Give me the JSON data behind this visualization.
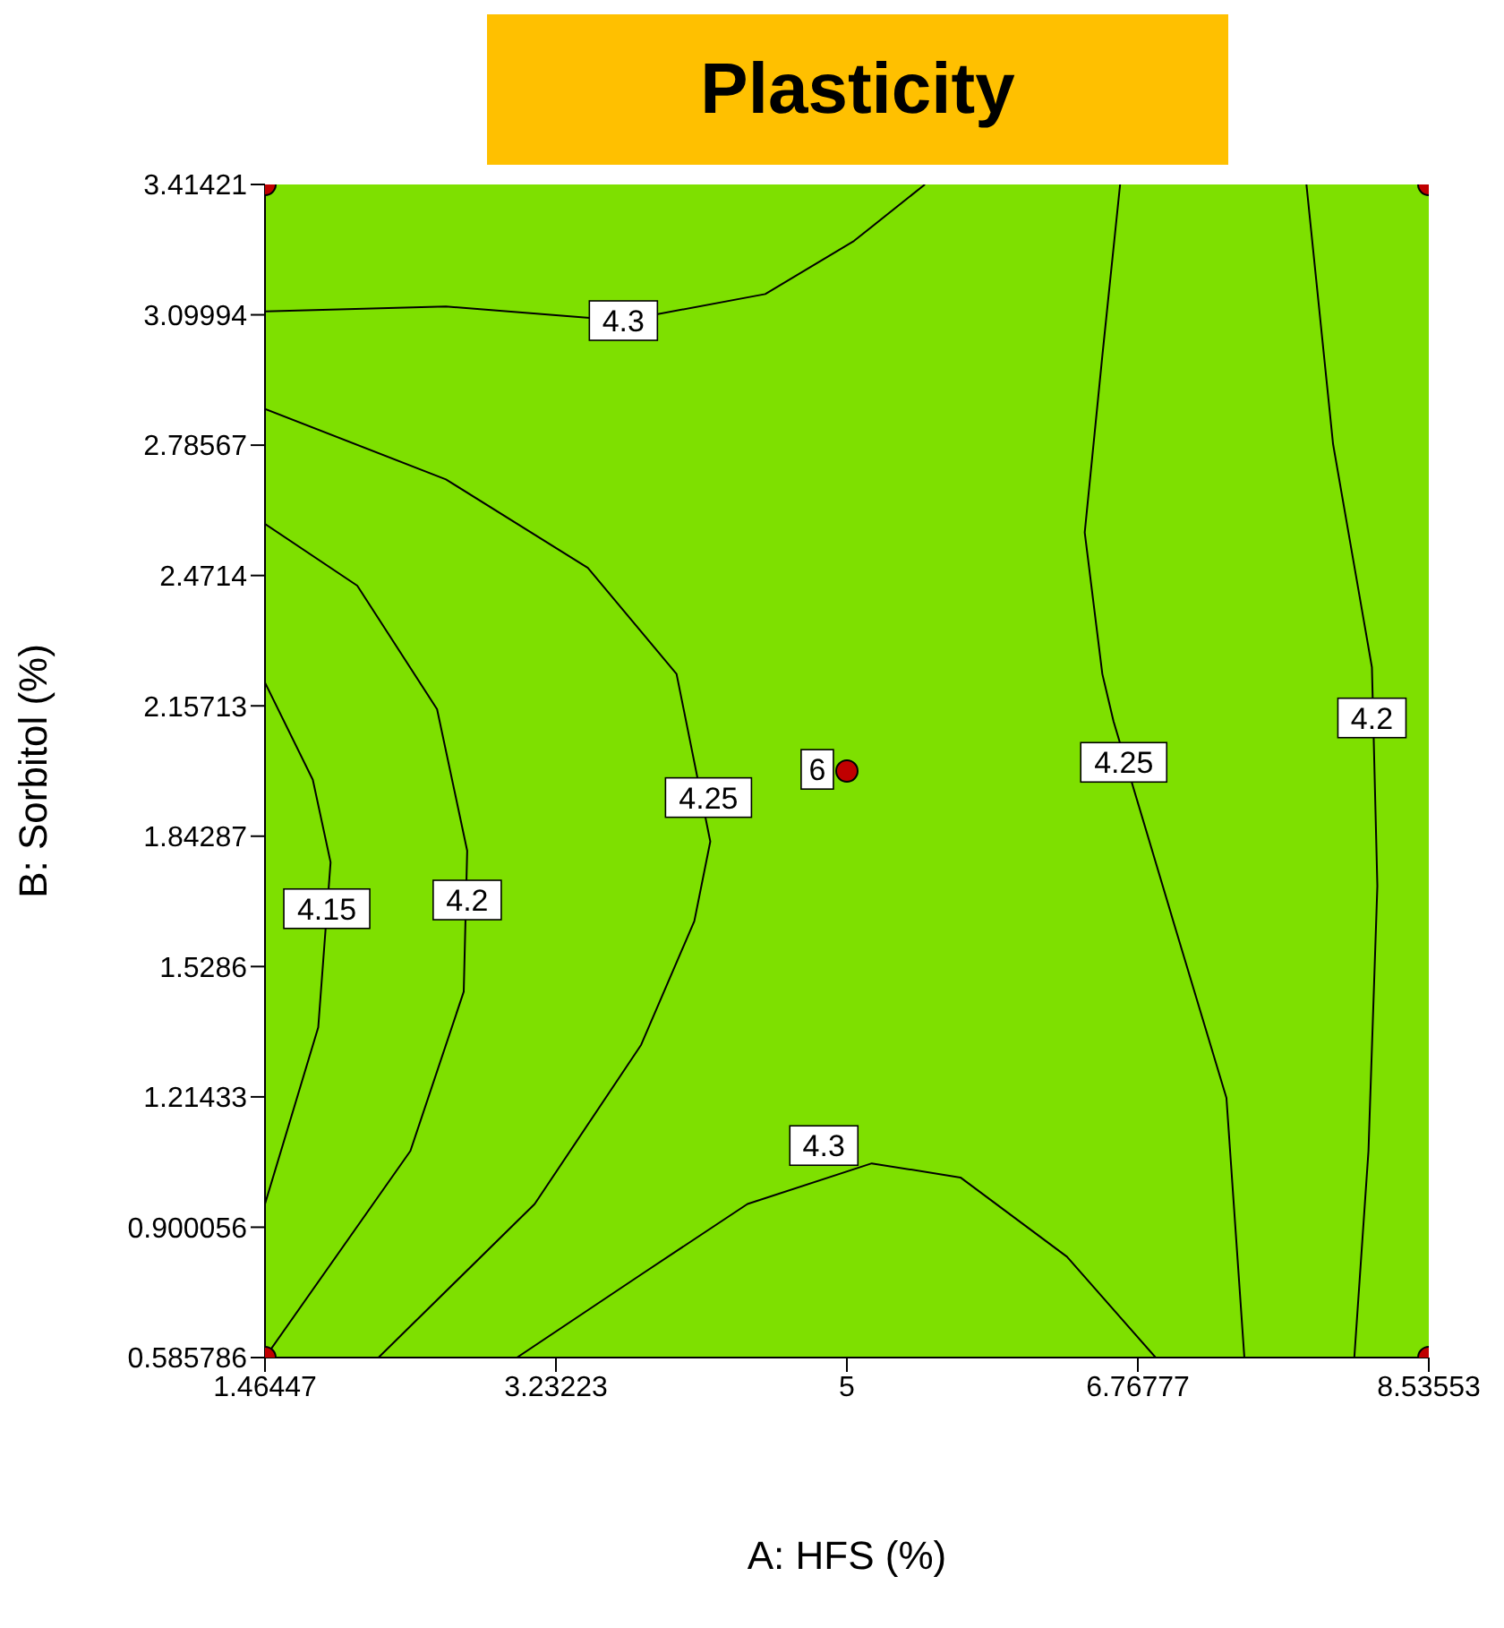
{
  "chart_data": {
    "type": "line",
    "title": "Plasticity",
    "xlabel": "A: HFS (%)",
    "ylabel": "B: Sorbitol (%)",
    "xlim": [
      1.46447,
      8.53553
    ],
    "xticks": [
      1.46447,
      3.23223,
      5,
      6.76777,
      8.53553
    ],
    "ylim": [
      0.585786,
      3.41421
    ],
    "yticks": [
      0.585786,
      0.900056,
      1.21433,
      1.5286,
      1.84287,
      2.15713,
      2.4714,
      2.78567,
      3.09994,
      3.41421
    ],
    "grid": false,
    "line_style": "solid",
    "series": [
      {
        "color": "#000000",
        "x": [
          1.46447,
          2.564,
          3.642,
          4.504,
          5.043,
          5.474
        ],
        "values": [
          3.108,
          3.12,
          3.086,
          3.15,
          3.278,
          3.41421
        ]
      },
      {
        "color": "#000000",
        "x": [
          2.995,
          3.75,
          4.396,
          5.151,
          5.69,
          6.337,
          6.876
        ],
        "values": [
          0.585786,
          0.786,
          0.956,
          1.054,
          1.02,
          0.829,
          0.585786
        ]
      },
      {
        "color": "#000000",
        "x": [
          1.46447,
          2.564,
          3.426,
          3.965,
          4.17,
          4.073,
          3.75,
          3.103,
          2.154
        ],
        "values": [
          2.873,
          2.703,
          2.49,
          2.234,
          1.83,
          1.638,
          1.34,
          0.956,
          0.585786
        ]
      },
      {
        "color": "#000000",
        "x": [
          1.46447,
          2.025,
          2.51,
          2.693,
          2.672,
          2.348,
          1.46447
        ],
        "values": [
          2.596,
          2.447,
          2.149,
          1.808,
          1.468,
          1.084,
          0.585786
        ]
      },
      {
        "color": "#000000",
        "x": [
          1.46447,
          1.755,
          1.863,
          1.788,
          1.46447
        ],
        "values": [
          2.213,
          1.979,
          1.78,
          1.382,
          0.956
        ]
      },
      {
        "color": "#000000",
        "x": [
          6.66,
          6.552,
          6.445,
          6.552,
          6.62,
          6.983,
          7.306,
          7.415
        ],
        "values": [
          3.41421,
          3.001,
          2.575,
          2.234,
          2.12,
          1.638,
          1.212,
          0.585786
        ]
      },
      {
        "color": "#000000",
        "x": [
          7.792,
          7.954,
          8.19,
          8.223,
          8.169,
          8.083
        ],
        "values": [
          3.41421,
          2.788,
          2.25,
          1.723,
          1.084,
          0.585786
        ]
      },
      {
        "type": "scatter",
        "marker": "circle",
        "color": "#c00000",
        "x": [
          1.46447,
          1.46447,
          8.53553,
          8.53553,
          5
        ],
        "values": [
          0.585786,
          3.41421,
          0.585786,
          3.41421,
          2
        ]
      }
    ],
    "annotations": [
      {
        "text": "4.3",
        "x": 3.642,
        "y": 3.086
      },
      {
        "text": "4.3",
        "x": 4.86,
        "y": 1.097
      },
      {
        "text": "4.25",
        "x": 4.159,
        "y": 1.936
      },
      {
        "text": "4.2",
        "x": 2.693,
        "y": 1.689
      },
      {
        "text": "4.15",
        "x": 1.84,
        "y": 1.668
      },
      {
        "text": "4.25",
        "x": 6.682,
        "y": 2.021
      },
      {
        "text": "4.2",
        "x": 8.19,
        "y": 2.128
      },
      {
        "text": "6",
        "x": 4.82,
        "y": 2.004
      }
    ]
  }
}
